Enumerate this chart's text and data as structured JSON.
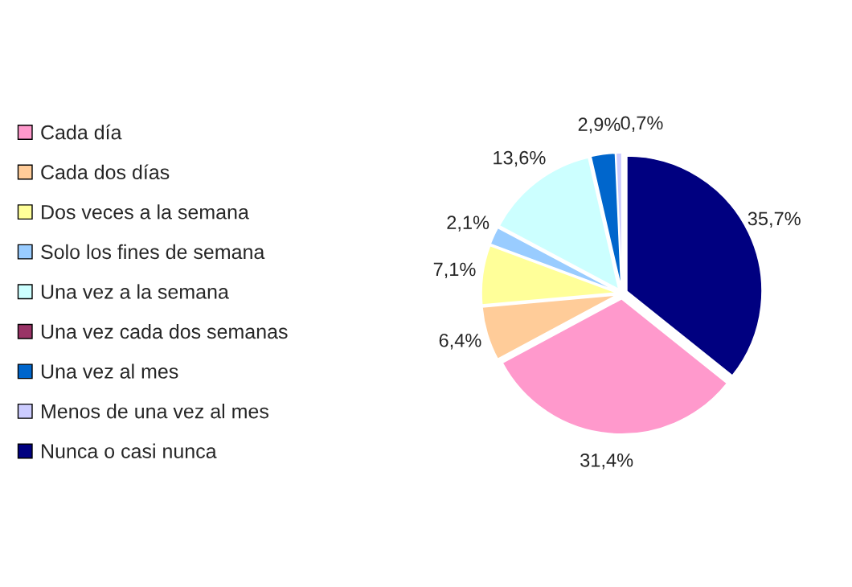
{
  "chart_data": {
    "type": "pie",
    "categories": [
      "Cada día",
      "Cada dos días",
      "Dos veces a la semana",
      "Solo los fines de semana",
      "Una vez a la semana",
      "Una vez cada dos semanas",
      "Una vez al mes",
      "Menos de una vez al mes",
      "Nunca o casi nunca"
    ],
    "values": [
      31.4,
      6.4,
      7.1,
      2.1,
      13.6,
      0,
      2.9,
      0.7,
      35.7
    ],
    "value_labels": [
      "31,4%",
      "6,4%",
      "7,1%",
      "2,1%",
      "13,6%",
      null,
      "2,9%",
      "0,7%",
      "35,7%"
    ],
    "colors": [
      "#ff99cc",
      "#ffcc99",
      "#ffff99",
      "#99ccff",
      "#ccffff",
      "#993366",
      "#0066cc",
      "#ccccff",
      "#000080"
    ],
    "legend": "left"
  }
}
